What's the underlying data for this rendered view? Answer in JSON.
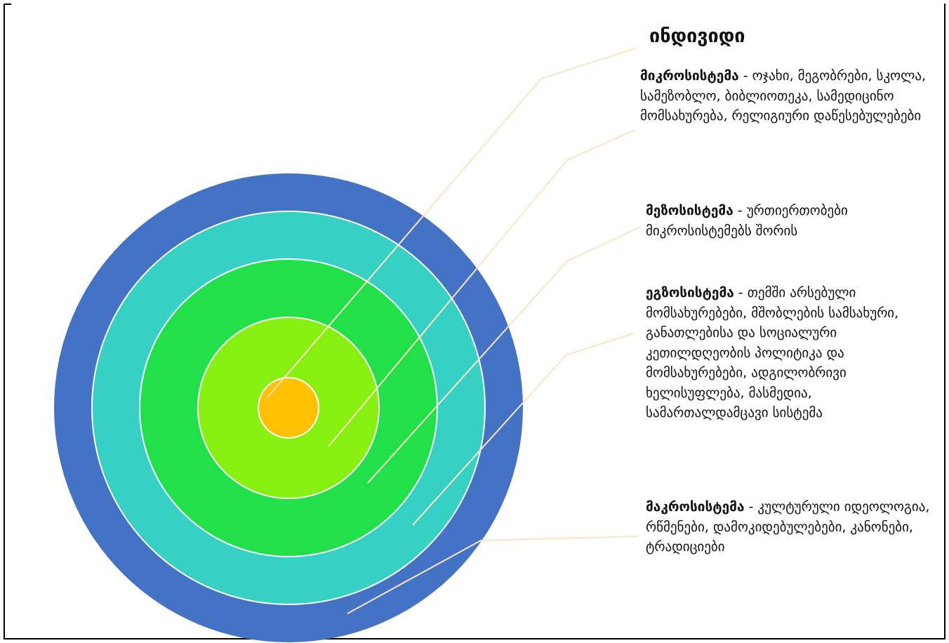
{
  "title": "ინდივიდი",
  "levels": [
    {
      "name": "მიკროსისტემა",
      "sep": " - ",
      "text": "ოჯახი, მეგობრები, სკოლა, სამეზობლო, ბიბლიოთეკა, სამედიცინო მომსახურება, რელიგიური დაწესებულებები"
    },
    {
      "name": "მეზოსისტემა",
      "sep": " - ",
      "text": "ურთიერთობები მიკროსისტემებს შორის"
    },
    {
      "name": "ეგზოსისტემა",
      "sep": " - ",
      "text": "თემში არსებული მომსახურებები,  მშობლების სამსახური, განათლებისა და სოციალური კეთილდღეობის პოლიტიკა და მომსახურებები, ადგილობრივი ხელისუფლება, მასმედია, სამართალდამცავი სისტემა"
    },
    {
      "name": "მაკროსისტემა",
      "sep": " - ",
      "text": "კულტურული იდეოლოგია, რწმენები, დამოკიდებულებები, კანონები, ტრადიციები"
    }
  ],
  "colors": {
    "macro": "#4472C4",
    "exo": "#36D1C4",
    "meso": "#22E04A",
    "micro": "#88F010",
    "individual": "#FFC000",
    "leader": "#FDE3C4"
  }
}
